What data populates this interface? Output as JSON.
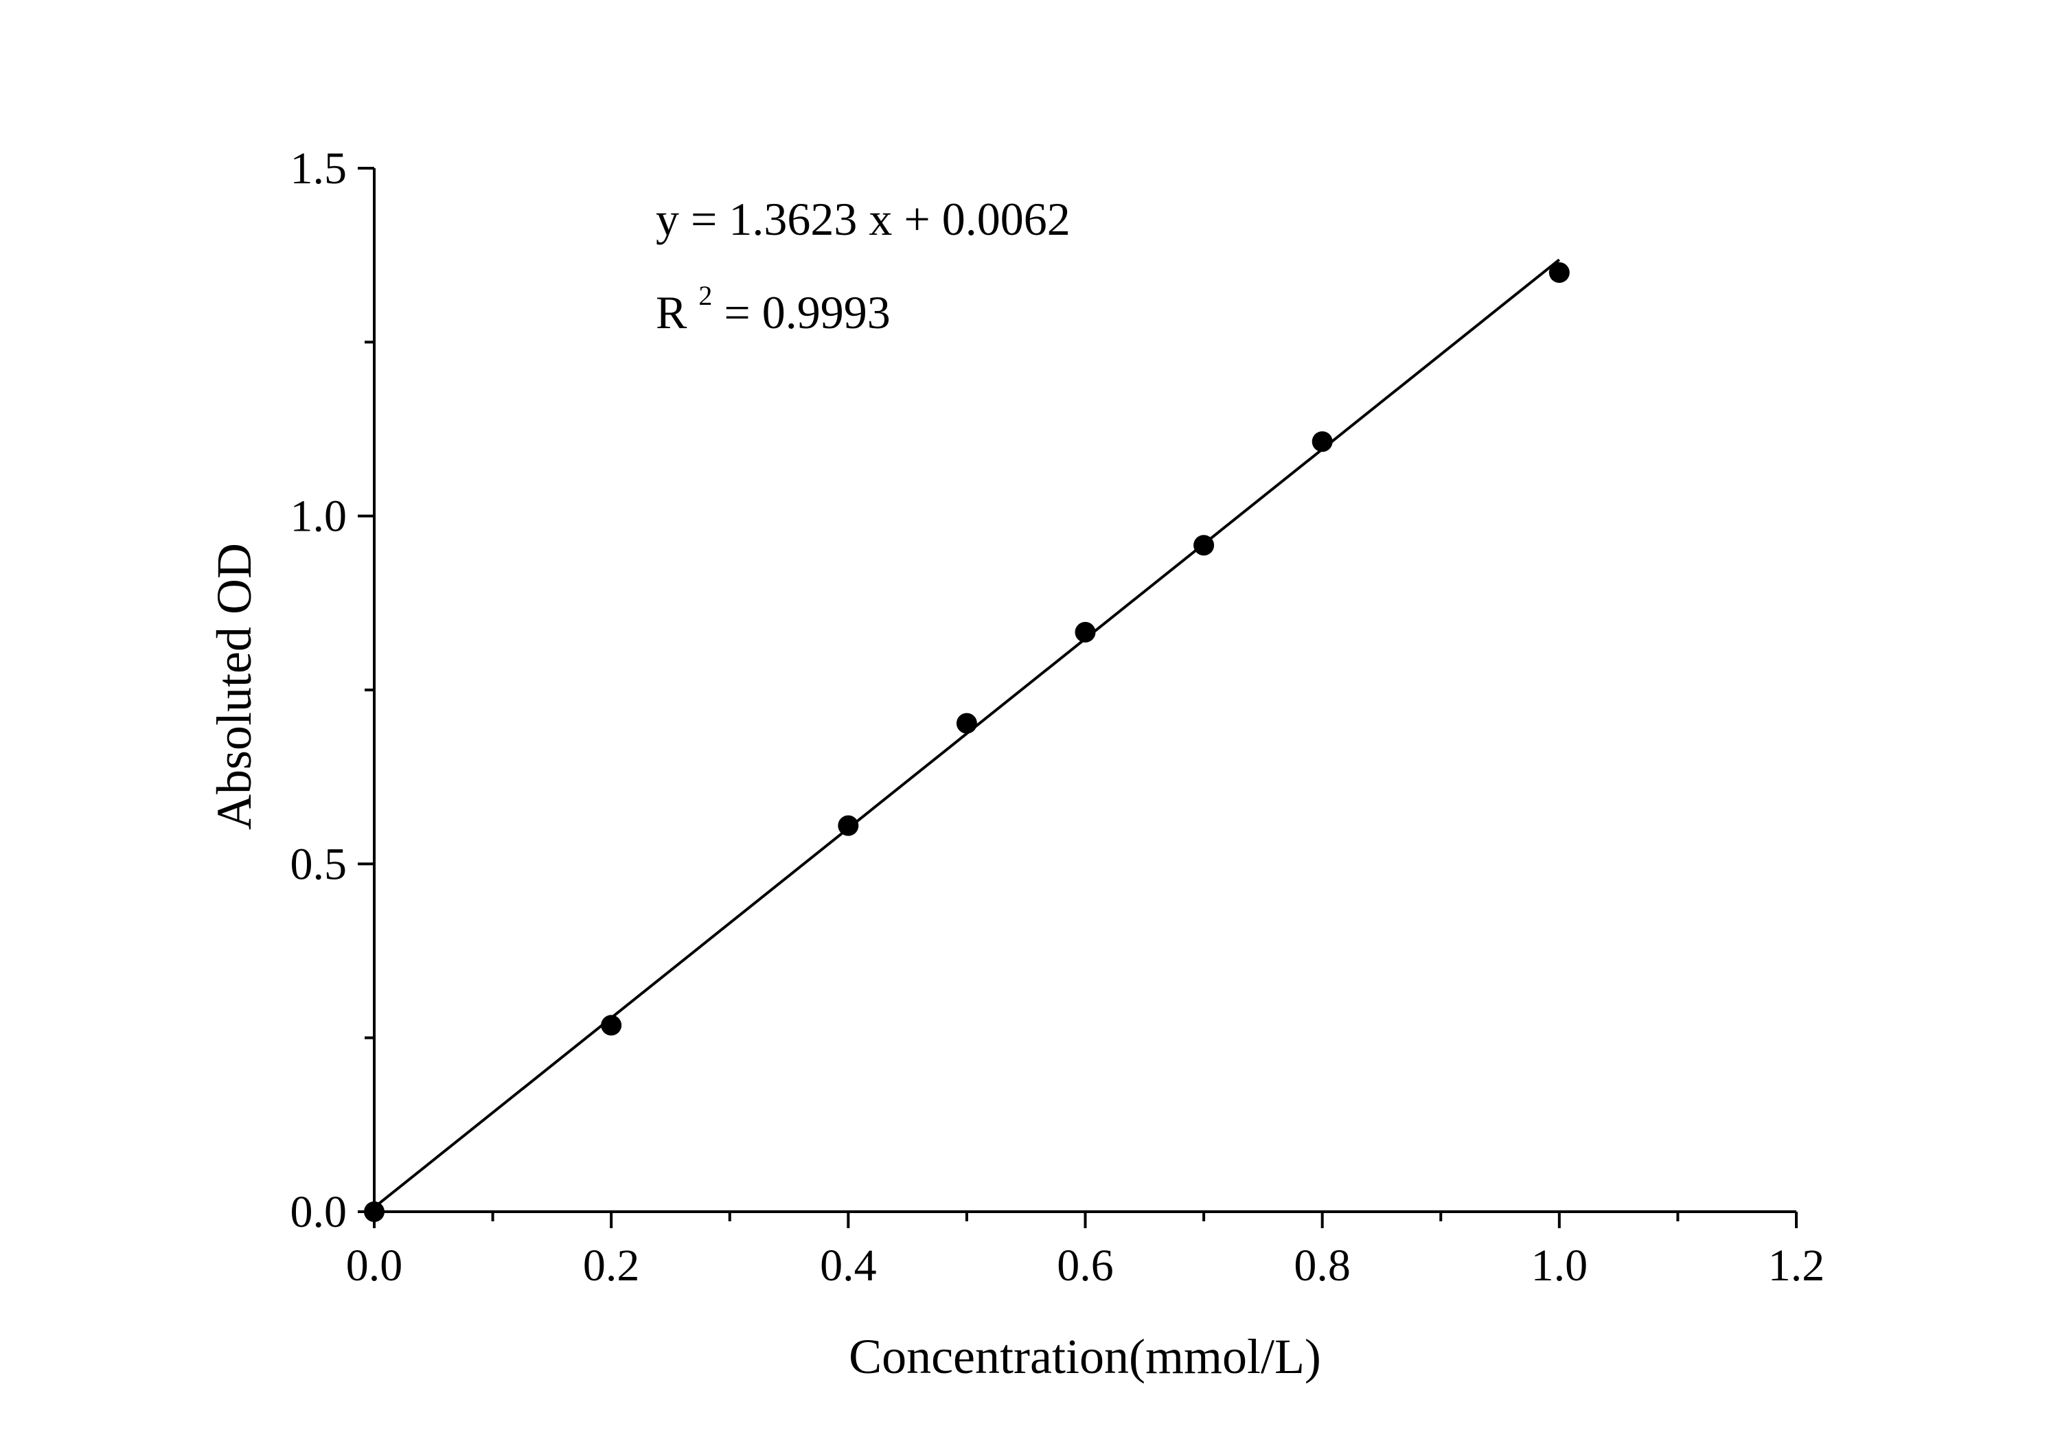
{
  "chart_data": {
    "type": "scatter",
    "title": "",
    "xlabel": "Concentration(mmol/L)",
    "ylabel": "Absoluted OD",
    "xlim": [
      0.0,
      1.2
    ],
    "ylim": [
      0.0,
      1.5
    ],
    "x_ticks": [
      "0.0",
      "0.2",
      "0.4",
      "0.6",
      "0.8",
      "1.0",
      "1.2"
    ],
    "y_ticks": [
      "0.0",
      "0.5",
      "1.0",
      "1.5"
    ],
    "x_minor_step": 0.1,
    "y_minor_step": 0.25,
    "grid": false,
    "legend": "none",
    "colors": {
      "points": "#000000",
      "fit_line": "#000000",
      "axes": "#000000"
    },
    "series": [
      {
        "x": [
          0.0,
          0.2,
          0.4,
          0.5,
          0.6,
          0.7,
          0.8,
          1.0
        ],
        "y": [
          0.0,
          0.268,
          0.555,
          0.702,
          0.833,
          0.958,
          1.107,
          1.35
        ]
      }
    ],
    "fit": {
      "slope": 1.3623,
      "intercept": 0.0062,
      "x_range": [
        0.0,
        1.0
      ],
      "equation_text": "y = 1.3623 x + 0.0062",
      "r2_prefix": "R",
      "r2_sup": "2",
      "r2_value_text": " = 0.9993"
    }
  }
}
